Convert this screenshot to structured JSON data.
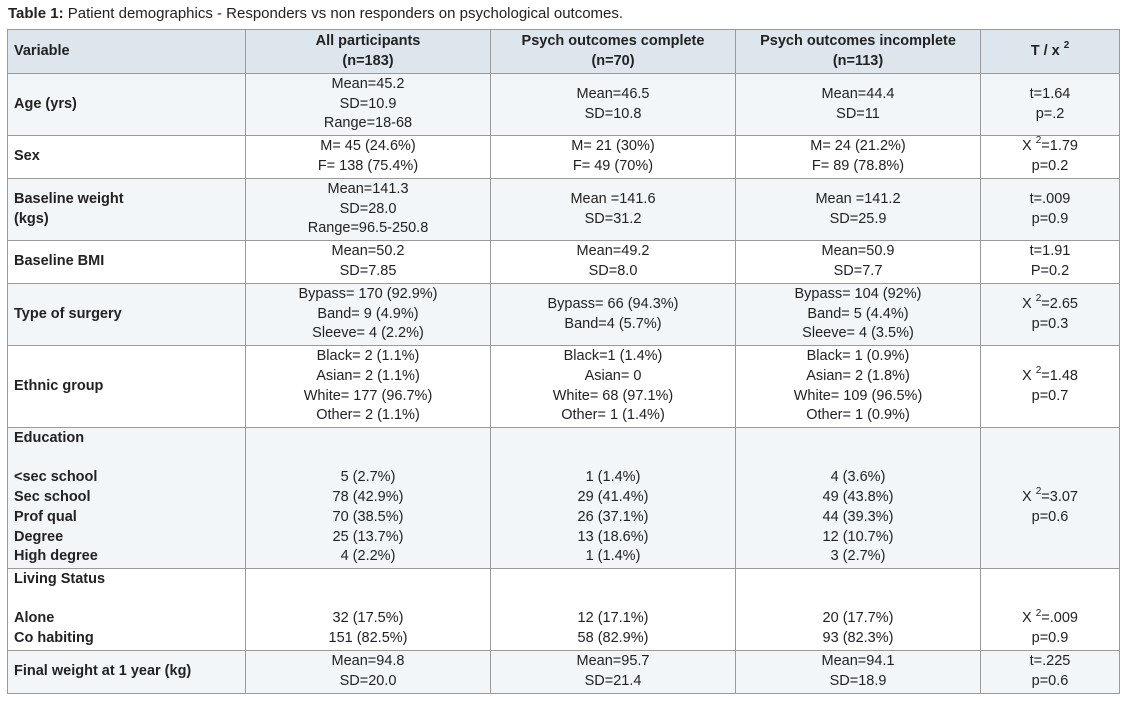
{
  "caption": {
    "label": "Table 1:",
    "text": " Patient demographics - Responders vs non responders on psychological outcomes."
  },
  "headers": {
    "variable": "Variable",
    "all": [
      "All participants",
      "(n=183)"
    ],
    "complete": [
      "Psych outcomes complete",
      "(n=70)"
    ],
    "incomplete": [
      "Psych outcomes incomplete",
      "(n=113)"
    ],
    "test": "T / x ",
    "test_sup": "2"
  },
  "rows": [
    {
      "label": [
        "Age (yrs)"
      ],
      "all": [
        "Mean=45.2",
        "SD=10.9",
        "Range=18-68"
      ],
      "complete": [
        "Mean=46.5",
        "SD=10.8"
      ],
      "incomplete": [
        "Mean=44.4",
        "SD=11"
      ],
      "test": [
        "t=1.64",
        "p=.2"
      ]
    },
    {
      "label": [
        "Sex"
      ],
      "all": [
        "M= 45 (24.6%)",
        "F= 138 (75.4%)"
      ],
      "complete": [
        "M= 21 (30%)",
        "F= 49 (70%)"
      ],
      "incomplete": [
        "M= 24 (21.2%)",
        "F= 89 (78.8%)"
      ],
      "test": [
        "X 2=1.79",
        "p=0.2"
      ]
    },
    {
      "label": [
        "Baseline weight",
        "(kgs)"
      ],
      "all": [
        "Mean=141.3",
        "SD=28.0",
        "Range=96.5-250.8"
      ],
      "complete": [
        "Mean =141.6",
        "SD=31.2"
      ],
      "incomplete": [
        "Mean =141.2",
        "SD=25.9"
      ],
      "test": [
        "t=.009",
        "p=0.9"
      ]
    },
    {
      "label": [
        "Baseline BMI"
      ],
      "all": [
        "Mean=50.2",
        "SD=7.85"
      ],
      "complete": [
        "Mean=49.2",
        "SD=8.0"
      ],
      "incomplete": [
        "Mean=50.9",
        "SD=7.7"
      ],
      "test": [
        "t=1.91",
        "P=0.2"
      ]
    },
    {
      "label": [
        "Type of surgery"
      ],
      "all": [
        "Bypass= 170 (92.9%)",
        "Band= 9 (4.9%)",
        "Sleeve= 4 (2.2%)"
      ],
      "complete": [
        "Bypass= 66 (94.3%)",
        "Band=4 (5.7%)"
      ],
      "incomplete": [
        "Bypass= 104 (92%)",
        "Band= 5 (4.4%)",
        "Sleeve= 4 (3.5%)"
      ],
      "test": [
        "X 2=2.65",
        "p=0.3"
      ]
    },
    {
      "label": [
        "Ethnic group"
      ],
      "all": [
        "Black= 2 (1.1%)",
        "Asian= 2 (1.1%)",
        "White= 177 (96.7%)",
        "Other= 2 (1.1%)"
      ],
      "complete": [
        "Black=1 (1.4%)",
        "Asian= 0",
        "White= 68 (97.1%)",
        "Other= 1 (1.4%)"
      ],
      "incomplete": [
        "Black= 1 (0.9%)",
        "Asian= 2 (1.8%)",
        "White= 109 (96.5%)",
        "Other= 1 (0.9%)"
      ],
      "test": [
        "X 2=1.48",
        "p=0.7"
      ]
    },
    {
      "label": [
        "Education",
        "",
        "<sec school",
        "Sec school",
        "Prof qual",
        "Degree",
        "High degree"
      ],
      "all": [
        "",
        "",
        "5 (2.7%)",
        "78 (42.9%)",
        "70 (38.5%)",
        "25 (13.7%)",
        "4 (2.2%)"
      ],
      "complete": [
        "",
        "",
        "1 (1.4%)",
        "29 (41.4%)",
        "26 (37.1%)",
        "13 (18.6%)",
        "1 (1.4%)"
      ],
      "incomplete": [
        "",
        "",
        "4 (3.6%)",
        "49 (43.8%)",
        "44 (39.3%)",
        "12 (10.7%)",
        "3 (2.7%)"
      ],
      "test": [
        "",
        "",
        "",
        "X 2=3.07",
        "p=0.6",
        "",
        ""
      ]
    },
    {
      "label": [
        "Living Status",
        "",
        "Alone",
        "Co habiting"
      ],
      "all": [
        "",
        "",
        "32 (17.5%)",
        "151 (82.5%)"
      ],
      "complete": [
        "",
        "",
        "12 (17.1%)",
        "58 (82.9%)"
      ],
      "incomplete": [
        "",
        "",
        "20 (17.7%)",
        "93 (82.3%)"
      ],
      "test": [
        "",
        "",
        "X 2=.009",
        "p=0.9"
      ]
    },
    {
      "label": [
        "Final weight at 1 year (kg)"
      ],
      "all": [
        "Mean=94.8",
        "SD=20.0"
      ],
      "complete": [
        "Mean=95.7",
        "SD=21.4"
      ],
      "incomplete": [
        "Mean=94.1",
        "SD=18.9"
      ],
      "test": [
        "t=.225",
        "p=0.6"
      ]
    }
  ]
}
